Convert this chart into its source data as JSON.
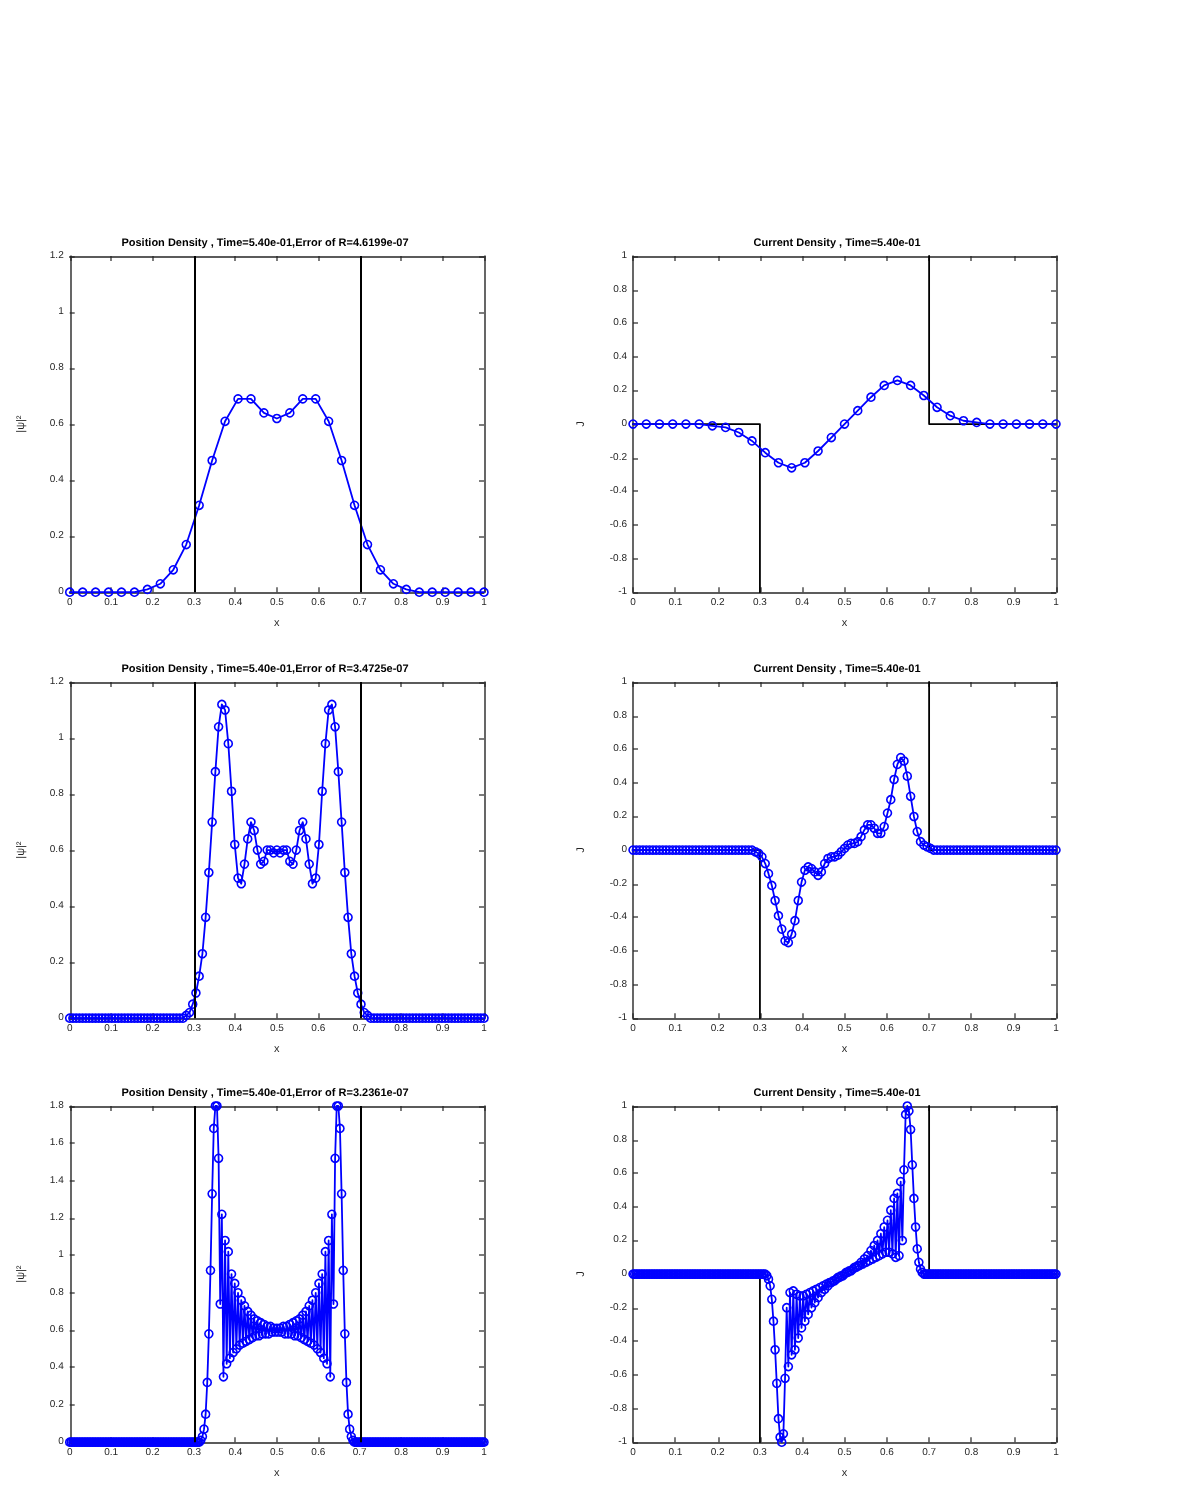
{
  "chart_data": [
    {
      "type": "line",
      "title": "Position Density , Time=5.40e-01,Error of R=4.6199e-07",
      "xlabel": "x",
      "ylabel": "|ψ|²",
      "marker": "circle",
      "xlim": [
        0,
        1
      ],
      "ylim": [
        0,
        1.2
      ],
      "xticks": [
        0,
        0.1,
        0.2,
        0.3,
        0.4,
        0.5,
        0.6,
        0.7,
        0.8,
        0.9,
        1
      ],
      "yticks": [
        0,
        0.2,
        0.4,
        0.6,
        0.8,
        1,
        1.2
      ],
      "ref_lines": [
        {
          "axis": "x",
          "value": 0.3,
          "color": "#000000"
        },
        {
          "axis": "x",
          "value": 0.7,
          "color": "#000000"
        }
      ],
      "x": [
        0,
        0.0313,
        0.0625,
        0.0938,
        0.125,
        0.1563,
        0.1875,
        0.2188,
        0.25,
        0.2813,
        0.3125,
        0.3438,
        0.375,
        0.4063,
        0.4375,
        0.4688,
        0.5,
        0.5313,
        0.5625,
        0.5938,
        0.625,
        0.6563,
        0.6875,
        0.7188,
        0.75,
        0.7813,
        0.8125,
        0.8438,
        0.875,
        0.9063,
        0.9375,
        0.9688,
        1
      ],
      "series": [
        {
          "color": "#0000ff",
          "values": [
            0,
            0,
            0,
            0,
            0,
            0,
            0.01,
            0.03,
            0.08,
            0.17,
            0.31,
            0.47,
            0.61,
            0.69,
            0.69,
            0.64,
            0.62,
            0.64,
            0.69,
            0.69,
            0.61,
            0.47,
            0.31,
            0.17,
            0.08,
            0.03,
            0.01,
            0,
            0,
            0,
            0,
            0,
            0
          ]
        }
      ]
    },
    {
      "type": "line",
      "title": "Current Density , Time=5.40e-01",
      "xlabel": "x",
      "ylabel": "J",
      "marker": "circle",
      "xlim": [
        0,
        1
      ],
      "ylim": [
        -1,
        1
      ],
      "xticks": [
        0,
        0.1,
        0.2,
        0.3,
        0.4,
        0.5,
        0.6,
        0.7,
        0.8,
        0.9,
        1
      ],
      "yticks": [
        -1,
        -0.8,
        -0.6,
        -0.4,
        -0.2,
        0,
        0.2,
        0.4,
        0.6,
        0.8,
        1
      ],
      "x": [
        0,
        0.0313,
        0.0625,
        0.0938,
        0.125,
        0.1563,
        0.1875,
        0.2188,
        0.25,
        0.2813,
        0.3125,
        0.3438,
        0.375,
        0.4063,
        0.4375,
        0.4688,
        0.5,
        0.5313,
        0.5625,
        0.5938,
        0.625,
        0.6563,
        0.6875,
        0.7188,
        0.75,
        0.7813,
        0.8125,
        0.8438,
        0.875,
        0.9063,
        0.9375,
        0.9688,
        1
      ],
      "series": [
        {
          "color": "#000000",
          "marker": "none",
          "x": [
            0,
            0.3,
            0.3
          ],
          "values": [
            0,
            0,
            -1
          ]
        },
        {
          "color": "#000000",
          "marker": "none",
          "x": [
            0.7,
            0.7,
            1
          ],
          "values": [
            1,
            0,
            0
          ]
        },
        {
          "color": "#0000ff",
          "values": [
            0,
            0,
            0,
            0,
            0,
            0,
            -0.01,
            -0.02,
            -0.05,
            -0.1,
            -0.17,
            -0.23,
            -0.26,
            -0.23,
            -0.16,
            -0.08,
            0,
            0.08,
            0.16,
            0.23,
            0.26,
            0.23,
            0.17,
            0.1,
            0.05,
            0.02,
            0.01,
            0,
            0,
            0,
            0,
            0,
            0
          ]
        }
      ]
    },
    {
      "type": "line",
      "title": "Position Density , Time=5.40e-01,Error of R=3.4725e-07",
      "xlabel": "x",
      "ylabel": "|ψ|²",
      "marker": "circle",
      "xlim": [
        0,
        1
      ],
      "ylim": [
        0,
        1.2
      ],
      "xticks": [
        0,
        0.1,
        0.2,
        0.3,
        0.4,
        0.5,
        0.6,
        0.7,
        0.8,
        0.9,
        1
      ],
      "yticks": [
        0,
        0.2,
        0.4,
        0.6,
        0.8,
        1,
        1.2
      ],
      "ref_lines": [
        {
          "axis": "x",
          "value": 0.3,
          "color": "#000000"
        },
        {
          "axis": "x",
          "value": 0.7,
          "color": "#000000"
        }
      ],
      "x": [
        0,
        0.0078,
        0.0156,
        0.0234,
        0.0313,
        0.0391,
        0.0469,
        0.0547,
        0.0625,
        0.0703,
        0.0781,
        0.0859,
        0.0938,
        0.1016,
        0.1094,
        0.1172,
        0.125,
        0.1328,
        0.1406,
        0.1484,
        0.1563,
        0.1641,
        0.1719,
        0.1797,
        0.1875,
        0.1953,
        0.2031,
        0.2109,
        0.2188,
        0.2266,
        0.2344,
        0.2422,
        0.25,
        0.2578,
        0.2656,
        0.2734,
        0.2813,
        0.2891,
        0.2969,
        0.3047,
        0.3125,
        0.3203,
        0.3281,
        0.3359,
        0.3438,
        0.3516,
        0.3594,
        0.3672,
        0.375,
        0.3828,
        0.3906,
        0.3984,
        0.4063,
        0.4141,
        0.4219,
        0.4297,
        0.4375,
        0.4453,
        0.4531,
        0.4609,
        0.4688,
        0.4766,
        0.4844,
        0.4922,
        0.5,
        0.5078,
        0.5156,
        0.5234,
        0.5313,
        0.5391,
        0.5469,
        0.5547,
        0.5625,
        0.5703,
        0.5781,
        0.5859,
        0.5938,
        0.6016,
        0.6094,
        0.6172,
        0.625,
        0.6328,
        0.6406,
        0.6484,
        0.6563,
        0.6641,
        0.6719,
        0.6797,
        0.6875,
        0.6953,
        0.7031,
        0.7109,
        0.7188,
        0.7266,
        0.7344,
        0.7422,
        0.75,
        0.7578,
        0.7656,
        0.7734,
        0.7813,
        0.7891,
        0.7969,
        0.8047,
        0.8125,
        0.8203,
        0.8281,
        0.8359,
        0.8438,
        0.8516,
        0.8594,
        0.8672,
        0.875,
        0.8828,
        0.8906,
        0.8984,
        0.9063,
        0.9141,
        0.9219,
        0.9297,
        0.9375,
        0.9453,
        0.9531,
        0.9609,
        0.9688,
        0.9766,
        0.9844,
        0.9922,
        1
      ],
      "series": [
        {
          "color": "#0000ff",
          "values": [
            0,
            0,
            0,
            0,
            0,
            0,
            0,
            0,
            0,
            0,
            0,
            0,
            0,
            0,
            0,
            0,
            0,
            0,
            0,
            0,
            0,
            0,
            0,
            0,
            0,
            0,
            0,
            0,
            0,
            0,
            0,
            0,
            0,
            0,
            0,
            0,
            0.01,
            0.02,
            0.05,
            0.09,
            0.15,
            0.23,
            0.36,
            0.52,
            0.7,
            0.88,
            1.04,
            1.12,
            1.1,
            0.98,
            0.81,
            0.62,
            0.5,
            0.48,
            0.55,
            0.64,
            0.7,
            0.67,
            0.6,
            0.55,
            0.56,
            0.6,
            0.6,
            0.59,
            0.6,
            0.59,
            0.6,
            0.6,
            0.56,
            0.55,
            0.6,
            0.67,
            0.7,
            0.64,
            0.55,
            0.48,
            0.5,
            0.62,
            0.81,
            0.98,
            1.1,
            1.12,
            1.04,
            0.88,
            0.7,
            0.52,
            0.36,
            0.23,
            0.15,
            0.09,
            0.05,
            0.02,
            0.01,
            0,
            0,
            0,
            0,
            0,
            0,
            0,
            0,
            0,
            0,
            0,
            0,
            0,
            0,
            0,
            0,
            0,
            0,
            0,
            0,
            0,
            0,
            0,
            0,
            0,
            0,
            0,
            0,
            0,
            0,
            0,
            0,
            0,
            0,
            0,
            0
          ]
        }
      ]
    },
    {
      "type": "line",
      "title": "Current Density , Time=5.40e-01",
      "xlabel": "x",
      "ylabel": "J",
      "marker": "circle",
      "xlim": [
        0,
        1
      ],
      "ylim": [
        -1,
        1
      ],
      "xticks": [
        0,
        0.1,
        0.2,
        0.3,
        0.4,
        0.5,
        0.6,
        0.7,
        0.8,
        0.9,
        1
      ],
      "yticks": [
        -1,
        -0.8,
        -0.6,
        -0.4,
        -0.2,
        0,
        0.2,
        0.4,
        0.6,
        0.8,
        1
      ],
      "x": [
        0,
        0.0078,
        0.0156,
        0.0234,
        0.0313,
        0.0391,
        0.0469,
        0.0547,
        0.0625,
        0.0703,
        0.0781,
        0.0859,
        0.0938,
        0.1016,
        0.1094,
        0.1172,
        0.125,
        0.1328,
        0.1406,
        0.1484,
        0.1563,
        0.1641,
        0.1719,
        0.1797,
        0.1875,
        0.1953,
        0.2031,
        0.2109,
        0.2188,
        0.2266,
        0.2344,
        0.2422,
        0.25,
        0.2578,
        0.2656,
        0.2734,
        0.2813,
        0.2891,
        0.2969,
        0.3047,
        0.3125,
        0.3203,
        0.3281,
        0.3359,
        0.3438,
        0.3516,
        0.3594,
        0.3672,
        0.375,
        0.3828,
        0.3906,
        0.3984,
        0.4063,
        0.4141,
        0.4219,
        0.4297,
        0.4375,
        0.4453,
        0.4531,
        0.4609,
        0.4688,
        0.4766,
        0.4844,
        0.4922,
        0.5,
        0.5078,
        0.5156,
        0.5234,
        0.5313,
        0.5391,
        0.5469,
        0.5547,
        0.5625,
        0.5703,
        0.5781,
        0.5859,
        0.5938,
        0.6016,
        0.6094,
        0.6172,
        0.625,
        0.6328,
        0.6406,
        0.6484,
        0.6563,
        0.6641,
        0.6719,
        0.6797,
        0.6875,
        0.6953,
        0.7031,
        0.7109,
        0.7188,
        0.7266,
        0.7344,
        0.7422,
        0.75,
        0.7578,
        0.7656,
        0.7734,
        0.7813,
        0.7891,
        0.7969,
        0.8047,
        0.8125,
        0.8203,
        0.8281,
        0.8359,
        0.8438,
        0.8516,
        0.8594,
        0.8672,
        0.875,
        0.8828,
        0.8906,
        0.8984,
        0.9063,
        0.9141,
        0.9219,
        0.9297,
        0.9375,
        0.9453,
        0.9531,
        0.9609,
        0.9688,
        0.9766,
        0.9844,
        0.9922,
        1
      ],
      "series": [
        {
          "color": "#000000",
          "marker": "none",
          "x": [
            0,
            0.3,
            0.3
          ],
          "values": [
            0,
            0,
            -1
          ]
        },
        {
          "color": "#000000",
          "marker": "none",
          "x": [
            0.7,
            0.7,
            1
          ],
          "values": [
            1,
            0,
            0
          ]
        },
        {
          "color": "#0000ff",
          "values": [
            0,
            0,
            0,
            0,
            0,
            0,
            0,
            0,
            0,
            0,
            0,
            0,
            0,
            0,
            0,
            0,
            0,
            0,
            0,
            0,
            0,
            0,
            0,
            0,
            0,
            0,
            0,
            0,
            0,
            0,
            0,
            0,
            0,
            0,
            0,
            0,
            0,
            -0.01,
            -0.02,
            -0.04,
            -0.08,
            -0.14,
            -0.21,
            -0.3,
            -0.39,
            -0.47,
            -0.54,
            -0.55,
            -0.5,
            -0.42,
            -0.3,
            -0.19,
            -0.12,
            -0.1,
            -0.11,
            -0.13,
            -0.15,
            -0.13,
            -0.08,
            -0.05,
            -0.04,
            -0.04,
            -0.03,
            -0.01,
            0.01,
            0.03,
            0.04,
            0.04,
            0.05,
            0.08,
            0.12,
            0.15,
            0.15,
            0.13,
            0.1,
            0.1,
            0.14,
            0.22,
            0.3,
            0.42,
            0.51,
            0.55,
            0.53,
            0.44,
            0.32,
            0.2,
            0.11,
            0.05,
            0.03,
            0.02,
            0.01,
            0,
            0,
            0,
            0,
            0,
            0,
            0,
            0,
            0,
            0,
            0,
            0,
            0,
            0,
            0,
            0,
            0,
            0,
            0,
            0,
            0,
            0,
            0,
            0,
            0,
            0,
            0,
            0,
            0,
            0,
            0,
            0,
            0,
            0,
            0,
            0,
            0,
            0
          ]
        }
      ]
    },
    {
      "type": "line",
      "title": "Position Density , Time=5.40e-01,Error of R=3.2361e-07",
      "xlabel": "x",
      "ylabel": "|ψ|²",
      "marker": "circle",
      "xlim": [
        0,
        1
      ],
      "ylim": [
        0,
        1.8
      ],
      "xticks": [
        0,
        0.1,
        0.2,
        0.3,
        0.4,
        0.5,
        0.6,
        0.7,
        0.8,
        0.9,
        1
      ],
      "yticks": [
        0,
        0.2,
        0.4,
        0.6,
        0.8,
        1,
        1.2,
        1.4,
        1.6,
        1.8
      ],
      "ref_lines": [
        {
          "axis": "x",
          "value": 0.3,
          "color": "#000000"
        },
        {
          "axis": "x",
          "value": 0.7,
          "color": "#000000"
        }
      ],
      "x": [
        0,
        0.0039,
        0.0078,
        0.0117,
        0.0156,
        0.0195,
        0.0234,
        0.0273,
        0.0313,
        0.0352,
        0.0391,
        0.043,
        0.0469,
        0.0508,
        0.0547,
        0.0586,
        0.0625,
        0.0664,
        0.0703,
        0.0742,
        0.0781,
        0.082,
        0.0859,
        0.0898,
        0.0938,
        0.0977,
        0.1016,
        0.1055,
        0.1094,
        0.1133,
        0.1172,
        0.1211,
        0.125,
        0.1289,
        0.1328,
        0.1367,
        0.1406,
        0.1445,
        0.1484,
        0.1523,
        0.1563,
        0.1602,
        0.1641,
        0.168,
        0.1719,
        0.1758,
        0.1797,
        0.1836,
        0.1875,
        0.1914,
        0.1953,
        0.1992,
        0.2031,
        0.207,
        0.2109,
        0.2148,
        0.2188,
        0.2227,
        0.2266,
        0.2305,
        0.2344,
        0.2383,
        0.2422,
        0.2461,
        0.25,
        0.2539,
        0.2578,
        0.2617,
        0.2656,
        0.2695,
        0.2734,
        0.2773,
        0.2813,
        0.2852,
        0.2891,
        0.293,
        0.2969,
        0.3008,
        0.3047,
        0.3086,
        0.3125,
        0.3164,
        0.3203,
        0.3242,
        0.3281,
        0.332,
        0.3359,
        0.3398,
        0.3438,
        0.3477,
        0.3516,
        0.3555,
        0.3594,
        0.3633,
        0.3672,
        0.3711,
        0.375,
        0.3789,
        0.3828,
        0.3867,
        0.3906,
        0.3945,
        0.3984,
        0.4023,
        0.4063,
        0.4102,
        0.4141,
        0.418,
        0.4219,
        0.4258,
        0.4297,
        0.4336,
        0.4375,
        0.4414,
        0.4453,
        0.4492,
        0.4531,
        0.457,
        0.4609,
        0.4648,
        0.4688,
        0.4727,
        0.4766,
        0.4805,
        0.4844,
        0.4883,
        0.4922,
        0.4961,
        0.5,
        0.5039,
        0.5078,
        0.5117,
        0.5156,
        0.5195,
        0.5234,
        0.5273,
        0.5313,
        0.5352,
        0.5391,
        0.543,
        0.5469,
        0.5508,
        0.5547,
        0.5586,
        0.5625,
        0.5664,
        0.5703,
        0.5742,
        0.5781,
        0.582,
        0.5859,
        0.5898,
        0.5938,
        0.5977,
        0.6016,
        0.6055,
        0.6094,
        0.6133,
        0.6172,
        0.6211,
        0.625,
        0.6289,
        0.6328,
        0.6367,
        0.6406,
        0.6445,
        0.6484,
        0.6523,
        0.6563,
        0.6602,
        0.6641,
        0.668,
        0.6719,
        0.6758,
        0.6797,
        0.6836,
        0.6875,
        0.6914,
        0.6953,
        0.6992,
        0.7031,
        0.707,
        0.7109,
        0.7148,
        0.7188,
        0.7227,
        0.7266,
        0.7305,
        0.7344,
        0.7383,
        0.7422,
        0.7461,
        0.75,
        0.7539,
        0.7578,
        0.7617,
        0.7656,
        0.7695,
        0.7734,
        0.7773,
        0.7813,
        0.7852,
        0.7891,
        0.793,
        0.7969,
        0.8008,
        0.8047,
        0.8086,
        0.8125,
        0.8164,
        0.8203,
        0.8242,
        0.8281,
        0.832,
        0.8359,
        0.8398,
        0.8438,
        0.8477,
        0.8516,
        0.8555,
        0.8594,
        0.8633,
        0.8672,
        0.8711,
        0.875,
        0.8789,
        0.8828,
        0.8867,
        0.8906,
        0.8945,
        0.8984,
        0.9023,
        0.9063,
        0.9102,
        0.9141,
        0.918,
        0.9219,
        0.9258,
        0.9297,
        0.9336,
        0.9375,
        0.9414,
        0.9453,
        0.9492,
        0.9531,
        0.957,
        0.9609,
        0.9648,
        0.9688,
        0.9727,
        0.9766,
        0.9805,
        0.9844,
        0.9883,
        0.9922,
        0.9961,
        1
      ],
      "series": [
        {
          "color": "#0000ff",
          "values": [
            0,
            0,
            0,
            0,
            0,
            0,
            0,
            0,
            0,
            0,
            0,
            0,
            0,
            0,
            0,
            0,
            0,
            0,
            0,
            0,
            0,
            0,
            0,
            0,
            0,
            0,
            0,
            0,
            0,
            0,
            0,
            0,
            0,
            0,
            0,
            0,
            0,
            0,
            0,
            0,
            0,
            0,
            0,
            0,
            0,
            0,
            0,
            0,
            0,
            0,
            0,
            0,
            0,
            0,
            0,
            0,
            0,
            0,
            0,
            0,
            0,
            0,
            0,
            0,
            0,
            0,
            0,
            0,
            0,
            0,
            0,
            0,
            0,
            0,
            0,
            0,
            0,
            0,
            0,
            0,
            0,
            0.01,
            0.03,
            0.07,
            0.15,
            0.32,
            0.58,
            0.92,
            1.33,
            1.68,
            1.8,
            1.8,
            1.52,
            0.74,
            1.22,
            0.35,
            1.08,
            0.42,
            1.02,
            0.45,
            0.9,
            0.48,
            0.85,
            0.5,
            0.8,
            0.52,
            0.76,
            0.53,
            0.73,
            0.54,
            0.7,
            0.55,
            0.68,
            0.56,
            0.66,
            0.57,
            0.65,
            0.57,
            0.64,
            0.58,
            0.63,
            0.58,
            0.62,
            0.58,
            0.62,
            0.59,
            0.61,
            0.59,
            0.61,
            0.59,
            0.61,
            0.59,
            0.62,
            0.58,
            0.62,
            0.58,
            0.63,
            0.58,
            0.64,
            0.57,
            0.65,
            0.57,
            0.66,
            0.56,
            0.68,
            0.55,
            0.7,
            0.54,
            0.73,
            0.53,
            0.76,
            0.52,
            0.8,
            0.5,
            0.85,
            0.48,
            0.9,
            0.45,
            1.02,
            0.42,
            1.08,
            0.35,
            1.22,
            0.74,
            1.52,
            1.8,
            1.8,
            1.68,
            1.33,
            0.92,
            0.58,
            0.32,
            0.15,
            0.07,
            0.03,
            0.01,
            0,
            0,
            0,
            0,
            0,
            0,
            0,
            0,
            0,
            0,
            0,
            0,
            0,
            0,
            0,
            0,
            0,
            0,
            0,
            0,
            0,
            0,
            0,
            0,
            0,
            0,
            0,
            0,
            0,
            0,
            0,
            0,
            0,
            0,
            0,
            0,
            0,
            0,
            0,
            0,
            0,
            0,
            0,
            0,
            0,
            0,
            0,
            0,
            0,
            0,
            0,
            0,
            0,
            0,
            0,
            0,
            0,
            0,
            0,
            0,
            0,
            0,
            0,
            0,
            0,
            0,
            0,
            0,
            0,
            0,
            0,
            0,
            0,
            0,
            0,
            0,
            0,
            0,
            0,
            0,
            0
          ]
        }
      ]
    },
    {
      "type": "line",
      "title": "Current Density , Time=5.40e-01",
      "xlabel": "x",
      "ylabel": "J",
      "marker": "circle",
      "xlim": [
        0,
        1
      ],
      "ylim": [
        -1,
        1
      ],
      "xticks": [
        0,
        0.1,
        0.2,
        0.3,
        0.4,
        0.5,
        0.6,
        0.7,
        0.8,
        0.9,
        1
      ],
      "yticks": [
        -1,
        -0.8,
        -0.6,
        -0.4,
        -0.2,
        0,
        0.2,
        0.4,
        0.6,
        0.8,
        1
      ],
      "x": [
        0,
        0.0039,
        0.0078,
        0.0117,
        0.0156,
        0.0195,
        0.0234,
        0.0273,
        0.0313,
        0.0352,
        0.0391,
        0.043,
        0.0469,
        0.0508,
        0.0547,
        0.0586,
        0.0625,
        0.0664,
        0.0703,
        0.0742,
        0.0781,
        0.082,
        0.0859,
        0.0898,
        0.0938,
        0.0977,
        0.1016,
        0.1055,
        0.1094,
        0.1133,
        0.1172,
        0.1211,
        0.125,
        0.1289,
        0.1328,
        0.1367,
        0.1406,
        0.1445,
        0.1484,
        0.1523,
        0.1563,
        0.1602,
        0.1641,
        0.168,
        0.1719,
        0.1758,
        0.1797,
        0.1836,
        0.1875,
        0.1914,
        0.1953,
        0.1992,
        0.2031,
        0.207,
        0.2109,
        0.2148,
        0.2188,
        0.2227,
        0.2266,
        0.2305,
        0.2344,
        0.2383,
        0.2422,
        0.2461,
        0.25,
        0.2539,
        0.2578,
        0.2617,
        0.2656,
        0.2695,
        0.2734,
        0.2773,
        0.2813,
        0.2852,
        0.2891,
        0.293,
        0.2969,
        0.3008,
        0.3047,
        0.3086,
        0.3125,
        0.3164,
        0.3203,
        0.3242,
        0.3281,
        0.332,
        0.3359,
        0.3398,
        0.3438,
        0.3477,
        0.3516,
        0.3555,
        0.3594,
        0.3633,
        0.3672,
        0.3711,
        0.375,
        0.3789,
        0.3828,
        0.3867,
        0.3906,
        0.3945,
        0.3984,
        0.4023,
        0.4063,
        0.4102,
        0.4141,
        0.418,
        0.4219,
        0.4258,
        0.4297,
        0.4336,
        0.4375,
        0.4414,
        0.4453,
        0.4492,
        0.4531,
        0.457,
        0.4609,
        0.4648,
        0.4688,
        0.4727,
        0.4766,
        0.4805,
        0.4844,
        0.4883,
        0.4922,
        0.4961,
        0.5,
        0.5039,
        0.5078,
        0.5117,
        0.5156,
        0.5195,
        0.5234,
        0.5273,
        0.5313,
        0.5352,
        0.5391,
        0.543,
        0.5469,
        0.5508,
        0.5547,
        0.5586,
        0.5625,
        0.5664,
        0.5703,
        0.5742,
        0.5781,
        0.582,
        0.5859,
        0.5898,
        0.5938,
        0.5977,
        0.6016,
        0.6055,
        0.6094,
        0.6133,
        0.6172,
        0.6211,
        0.625,
        0.6289,
        0.6328,
        0.6367,
        0.6406,
        0.6445,
        0.6484,
        0.6523,
        0.6563,
        0.6602,
        0.6641,
        0.668,
        0.6719,
        0.6758,
        0.6797,
        0.6836,
        0.6875,
        0.6914,
        0.6953,
        0.6992,
        0.7031,
        0.707,
        0.7109,
        0.7148,
        0.7188,
        0.7227,
        0.7266,
        0.7305,
        0.7344,
        0.7383,
        0.7422,
        0.7461,
        0.75,
        0.7539,
        0.7578,
        0.7617,
        0.7656,
        0.7695,
        0.7734,
        0.7773,
        0.7813,
        0.7852,
        0.7891,
        0.793,
        0.7969,
        0.8008,
        0.8047,
        0.8086,
        0.8125,
        0.8164,
        0.8203,
        0.8242,
        0.8281,
        0.832,
        0.8359,
        0.8398,
        0.8438,
        0.8477,
        0.8516,
        0.8555,
        0.8594,
        0.8633,
        0.8672,
        0.8711,
        0.875,
        0.8789,
        0.8828,
        0.8867,
        0.8906,
        0.8945,
        0.8984,
        0.9023,
        0.9063,
        0.9102,
        0.9141,
        0.918,
        0.9219,
        0.9258,
        0.9297,
        0.9336,
        0.9375,
        0.9414,
        0.9453,
        0.9492,
        0.9531,
        0.957,
        0.9609,
        0.9648,
        0.9688,
        0.9727,
        0.9766,
        0.9805,
        0.9844,
        0.9883,
        0.9922,
        0.9961,
        1
      ],
      "series": [
        {
          "color": "#000000",
          "marker": "none",
          "x": [
            0,
            0.3,
            0.3
          ],
          "values": [
            0,
            0,
            -1
          ]
        },
        {
          "color": "#000000",
          "marker": "none",
          "x": [
            0.7,
            0.7,
            1
          ],
          "values": [
            1,
            0,
            0
          ]
        },
        {
          "color": "#0000ff",
          "values": [
            0,
            0,
            0,
            0,
            0,
            0,
            0,
            0,
            0,
            0,
            0,
            0,
            0,
            0,
            0,
            0,
            0,
            0,
            0,
            0,
            0,
            0,
            0,
            0,
            0,
            0,
            0,
            0,
            0,
            0,
            0,
            0,
            0,
            0,
            0,
            0,
            0,
            0,
            0,
            0,
            0,
            0,
            0,
            0,
            0,
            0,
            0,
            0,
            0,
            0,
            0,
            0,
            0,
            0,
            0,
            0,
            0,
            0,
            0,
            0,
            0,
            0,
            0,
            0,
            0,
            0,
            0,
            0,
            0,
            0,
            0,
            0,
            0,
            0,
            0,
            0,
            0,
            0,
            0,
            0,
            0,
            -0.01,
            -0.03,
            -0.07,
            -0.15,
            -0.28,
            -0.45,
            -0.65,
            -0.86,
            -0.97,
            -1,
            -0.95,
            -0.62,
            -0.2,
            -0.55,
            -0.11,
            -0.48,
            -0.1,
            -0.45,
            -0.12,
            -0.38,
            -0.13,
            -0.32,
            -0.13,
            -0.28,
            -0.12,
            -0.24,
            -0.11,
            -0.2,
            -0.1,
            -0.17,
            -0.09,
            -0.14,
            -0.08,
            -0.11,
            -0.07,
            -0.09,
            -0.06,
            -0.07,
            -0.05,
            -0.05,
            -0.04,
            -0.04,
            -0.03,
            -0.02,
            -0.02,
            -0.01,
            -0.01,
            0,
            0.01,
            0.01,
            0.02,
            0.02,
            0.03,
            0.04,
            0.04,
            0.05,
            0.05,
            0.07,
            0.06,
            0.09,
            0.07,
            0.11,
            0.08,
            0.14,
            0.09,
            0.17,
            0.1,
            0.2,
            0.11,
            0.24,
            0.12,
            0.28,
            0.13,
            0.32,
            0.13,
            0.38,
            0.12,
            0.45,
            0.1,
            0.48,
            0.11,
            0.55,
            0.2,
            0.62,
            0.95,
            1,
            0.97,
            0.86,
            0.65,
            0.45,
            0.28,
            0.15,
            0.07,
            0.03,
            0.01,
            0,
            0,
            0,
            0,
            0,
            0,
            0,
            0,
            0,
            0,
            0,
            0,
            0,
            0,
            0,
            0,
            0,
            0,
            0,
            0,
            0,
            0,
            0,
            0,
            0,
            0,
            0,
            0,
            0,
            0,
            0,
            0,
            0,
            0,
            0,
            0,
            0,
            0,
            0,
            0,
            0,
            0,
            0,
            0,
            0,
            0,
            0,
            0,
            0,
            0,
            0,
            0,
            0,
            0,
            0,
            0,
            0,
            0,
            0,
            0,
            0,
            0,
            0,
            0,
            0,
            0,
            0,
            0,
            0,
            0,
            0,
            0,
            0,
            0,
            0,
            0,
            0,
            0,
            0,
            0,
            0
          ]
        }
      ]
    }
  ]
}
